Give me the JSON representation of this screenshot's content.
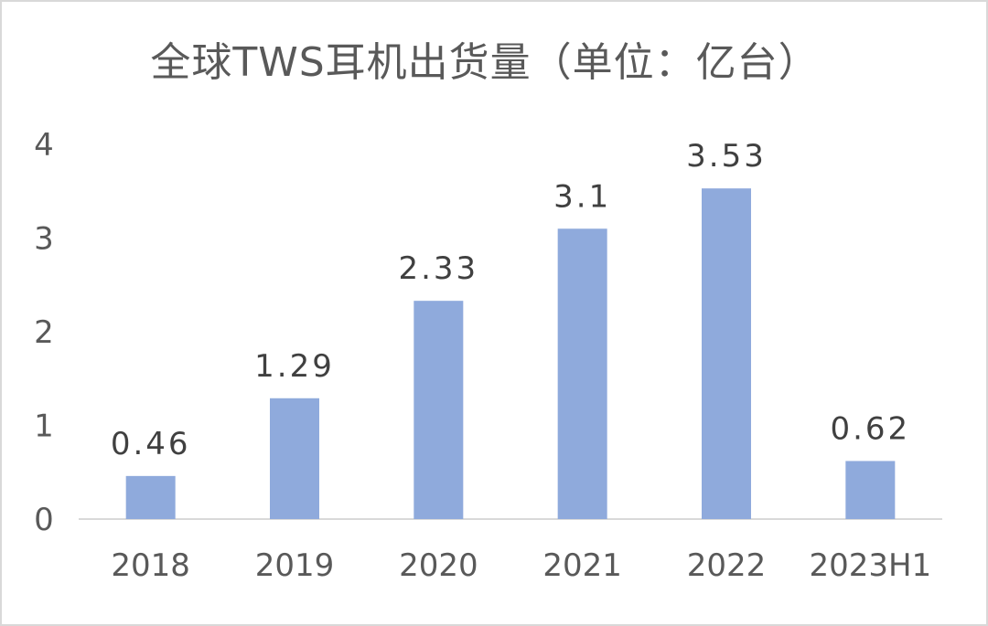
{
  "chart_data": {
    "type": "bar",
    "title": "全球TWS耳机出货量（单位：亿台）",
    "categories": [
      "2018",
      "2019",
      "2020",
      "2021",
      "2022",
      "2023H1"
    ],
    "values": [
      0.46,
      1.29,
      2.33,
      3.1,
      3.53,
      0.62
    ],
    "data_labels": [
      "0.46",
      "1.29",
      "2.33",
      "3.1",
      "3.53",
      "0.62"
    ],
    "y_ticks": [
      "0",
      "1",
      "2",
      "3",
      "4"
    ],
    "ylim": [
      0,
      4
    ],
    "xlabel": "",
    "ylabel": "",
    "grid": false,
    "legend": "none",
    "bar_color": "#8faadc",
    "axis_color": "#d9d9d9"
  }
}
